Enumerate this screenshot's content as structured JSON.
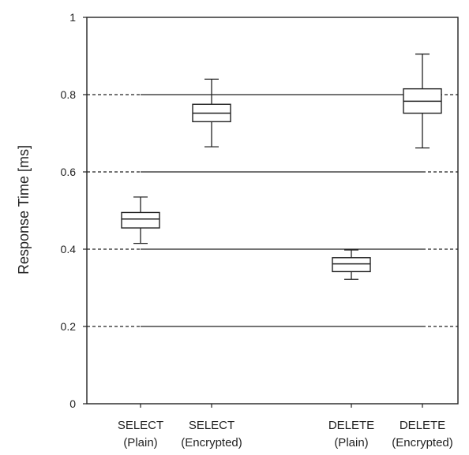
{
  "chart_data": {
    "type": "box",
    "title": "",
    "xlabel": "",
    "ylabel": "Response Time [ms]",
    "ylim": [
      0,
      1
    ],
    "yticks": [
      "0",
      "0.2",
      "0.4",
      "0.6",
      "0.8",
      "1"
    ],
    "grid": true,
    "categories": [
      {
        "line1": "SELECT",
        "line2": "(Plain)"
      },
      {
        "line1": "SELECT",
        "line2": "(Encrypted)"
      },
      {
        "line1": "DELETE",
        "line2": "(Plain)"
      },
      {
        "line1": "DELETE",
        "line2": "(Encrypted)"
      }
    ],
    "boxes": [
      {
        "whisker_low": 0.415,
        "q1": 0.455,
        "median": 0.478,
        "q3": 0.495,
        "whisker_high": 0.535
      },
      {
        "whisker_low": 0.665,
        "q1": 0.73,
        "median": 0.752,
        "q3": 0.775,
        "whisker_high": 0.84
      },
      {
        "whisker_low": 0.322,
        "q1": 0.342,
        "median": 0.362,
        "q3": 0.378,
        "whisker_high": 0.398
      },
      {
        "whisker_low": 0.662,
        "q1": 0.752,
        "median": 0.783,
        "q3": 0.815,
        "whisker_high": 0.905
      }
    ],
    "colors": {
      "axis": "#222222",
      "grid": "#222222",
      "box_fill": "#ffffff",
      "box_stroke": "#222222"
    }
  }
}
